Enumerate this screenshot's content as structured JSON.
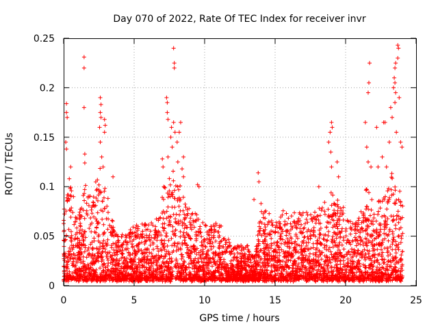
{
  "chart_data": {
    "type": "scatter",
    "title": "Day 070 of 2022, Rate Of TEC Index for receiver invr",
    "xlabel": "GPS time / hours",
    "ylabel": "ROTI / TECUs",
    "xlim": [
      0,
      25
    ],
    "ylim": [
      0,
      0.25
    ],
    "xticks": [
      "0",
      "5",
      "10",
      "15",
      "20",
      "25"
    ],
    "yticks": [
      "0",
      "0.05",
      "0.1",
      "0.15",
      "0.2",
      "0.25"
    ],
    "grid": true,
    "marker": "+",
    "point_color": "#ff0000",
    "envelope": {
      "x": [
        0.0,
        0.5,
        1.0,
        1.5,
        2.0,
        2.5,
        3.0,
        3.5,
        4.0,
        4.5,
        5.0,
        5.5,
        6.0,
        6.5,
        7.0,
        7.5,
        8.0,
        8.5,
        9.0,
        9.5,
        10.0,
        10.5,
        11.0,
        11.5,
        12.0,
        12.5,
        13.0,
        13.5,
        14.0,
        14.5,
        15.0,
        15.5,
        16.0,
        16.5,
        17.0,
        17.5,
        18.0,
        18.5,
        19.0,
        19.5,
        20.0,
        20.5,
        21.0,
        21.5,
        22.0,
        22.5,
        23.0,
        23.5,
        24.0
      ],
      "typical_max": [
        0.06,
        0.09,
        0.05,
        0.09,
        0.07,
        0.1,
        0.08,
        0.05,
        0.04,
        0.04,
        0.05,
        0.05,
        0.05,
        0.05,
        0.08,
        0.09,
        0.1,
        0.08,
        0.06,
        0.06,
        0.05,
        0.05,
        0.05,
        0.04,
        0.03,
        0.03,
        0.03,
        0.02,
        0.06,
        0.06,
        0.05,
        0.06,
        0.06,
        0.06,
        0.06,
        0.06,
        0.06,
        0.07,
        0.08,
        0.07,
        0.06,
        0.05,
        0.06,
        0.08,
        0.07,
        0.07,
        0.09,
        0.1,
        0.07
      ]
    },
    "peaks": [
      {
        "x": 0.2,
        "y": 0.184
      },
      {
        "x": 0.2,
        "y": 0.175
      },
      {
        "x": 0.25,
        "y": 0.17
      },
      {
        "x": 0.15,
        "y": 0.145
      },
      {
        "x": 0.2,
        "y": 0.138
      },
      {
        "x": 0.5,
        "y": 0.12
      },
      {
        "x": 0.4,
        "y": 0.108
      },
      {
        "x": 1.45,
        "y": 0.231
      },
      {
        "x": 1.45,
        "y": 0.22
      },
      {
        "x": 1.45,
        "y": 0.18
      },
      {
        "x": 1.5,
        "y": 0.133
      },
      {
        "x": 1.5,
        "y": 0.124
      },
      {
        "x": 2.6,
        "y": 0.19
      },
      {
        "x": 2.65,
        "y": 0.183
      },
      {
        "x": 2.6,
        "y": 0.175
      },
      {
        "x": 2.65,
        "y": 0.17
      },
      {
        "x": 2.55,
        "y": 0.16
      },
      {
        "x": 2.6,
        "y": 0.145
      },
      {
        "x": 2.9,
        "y": 0.168
      },
      {
        "x": 2.95,
        "y": 0.162
      },
      {
        "x": 2.9,
        "y": 0.155
      },
      {
        "x": 2.7,
        "y": 0.13
      },
      {
        "x": 2.8,
        "y": 0.12
      },
      {
        "x": 3.5,
        "y": 0.11
      },
      {
        "x": 7.0,
        "y": 0.128
      },
      {
        "x": 7.05,
        "y": 0.12
      },
      {
        "x": 7.1,
        "y": 0.1
      },
      {
        "x": 7.3,
        "y": 0.19
      },
      {
        "x": 7.35,
        "y": 0.185
      },
      {
        "x": 7.35,
        "y": 0.175
      },
      {
        "x": 7.4,
        "y": 0.168
      },
      {
        "x": 7.4,
        "y": 0.13
      },
      {
        "x": 7.65,
        "y": 0.16
      },
      {
        "x": 7.6,
        "y": 0.15
      },
      {
        "x": 7.7,
        "y": 0.14
      },
      {
        "x": 7.8,
        "y": 0.24
      },
      {
        "x": 7.85,
        "y": 0.225
      },
      {
        "x": 7.85,
        "y": 0.22
      },
      {
        "x": 7.8,
        "y": 0.165
      },
      {
        "x": 7.9,
        "y": 0.155
      },
      {
        "x": 8.05,
        "y": 0.145
      },
      {
        "x": 8.1,
        "y": 0.125
      },
      {
        "x": 8.2,
        "y": 0.155
      },
      {
        "x": 8.3,
        "y": 0.165
      },
      {
        "x": 8.5,
        "y": 0.13
      },
      {
        "x": 8.4,
        "y": 0.118
      },
      {
        "x": 8.5,
        "y": 0.11
      },
      {
        "x": 9.5,
        "y": 0.102
      },
      {
        "x": 9.6,
        "y": 0.1
      },
      {
        "x": 13.8,
        "y": 0.114
      },
      {
        "x": 13.85,
        "y": 0.105
      },
      {
        "x": 13.5,
        "y": 0.087
      },
      {
        "x": 14.0,
        "y": 0.083
      },
      {
        "x": 18.1,
        "y": 0.1
      },
      {
        "x": 18.8,
        "y": 0.145
      },
      {
        "x": 18.9,
        "y": 0.155
      },
      {
        "x": 19.0,
        "y": 0.165
      },
      {
        "x": 19.05,
        "y": 0.16
      },
      {
        "x": 18.95,
        "y": 0.135
      },
      {
        "x": 19.0,
        "y": 0.12
      },
      {
        "x": 19.4,
        "y": 0.125
      },
      {
        "x": 19.5,
        "y": 0.11
      },
      {
        "x": 21.4,
        "y": 0.165
      },
      {
        "x": 21.5,
        "y": 0.14
      },
      {
        "x": 21.6,
        "y": 0.125
      },
      {
        "x": 21.7,
        "y": 0.225
      },
      {
        "x": 21.65,
        "y": 0.205
      },
      {
        "x": 21.6,
        "y": 0.195
      },
      {
        "x": 21.8,
        "y": 0.12
      },
      {
        "x": 22.2,
        "y": 0.16
      },
      {
        "x": 22.3,
        "y": 0.12
      },
      {
        "x": 22.6,
        "y": 0.13
      },
      {
        "x": 22.7,
        "y": 0.165
      },
      {
        "x": 22.8,
        "y": 0.165
      },
      {
        "x": 22.9,
        "y": 0.12
      },
      {
        "x": 23.1,
        "y": 0.145
      },
      {
        "x": 23.2,
        "y": 0.18
      },
      {
        "x": 23.3,
        "y": 0.17
      },
      {
        "x": 23.4,
        "y": 0.2
      },
      {
        "x": 23.45,
        "y": 0.21
      },
      {
        "x": 23.5,
        "y": 0.205
      },
      {
        "x": 23.55,
        "y": 0.195
      },
      {
        "x": 23.5,
        "y": 0.185
      },
      {
        "x": 23.5,
        "y": 0.22
      },
      {
        "x": 23.55,
        "y": 0.225
      },
      {
        "x": 23.7,
        "y": 0.243
      },
      {
        "x": 23.75,
        "y": 0.24
      },
      {
        "x": 23.7,
        "y": 0.23
      },
      {
        "x": 23.8,
        "y": 0.19
      },
      {
        "x": 23.6,
        "y": 0.155
      },
      {
        "x": 23.9,
        "y": 0.145
      },
      {
        "x": 24.0,
        "y": 0.14
      }
    ]
  }
}
